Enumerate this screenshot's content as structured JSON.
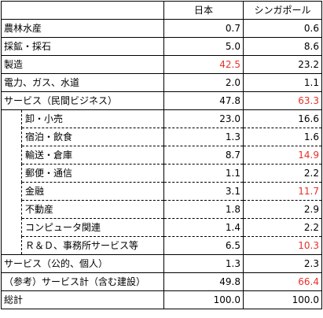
{
  "header": {
    "japan": "日本",
    "singapore": "シンガポール"
  },
  "colors": {
    "highlight": "#e8302a"
  },
  "rows": [
    {
      "label": "農林水産",
      "japan": "0.7",
      "singapore": "0.6"
    },
    {
      "label": "採鉱・採石",
      "japan": "5.0",
      "singapore": "8.6"
    },
    {
      "label": "製造",
      "japan": "42.5",
      "singapore": "23.2"
    },
    {
      "label": "電力、ガス、水道",
      "japan": "2.0",
      "singapore": "1.1"
    },
    {
      "label": "サービス（民間ビジネス）",
      "japan": "47.8",
      "singapore": "63.3"
    },
    {
      "label": "卸・小売",
      "japan": "23.0",
      "singapore": "16.6"
    },
    {
      "label": "宿泊・飲食",
      "japan": "1.3",
      "singapore": "1.6"
    },
    {
      "label": "輸送・倉庫",
      "japan": "8.7",
      "singapore": "14.9"
    },
    {
      "label": "郵便・通信",
      "japan": "1.1",
      "singapore": "2.2"
    },
    {
      "label": "金融",
      "japan": "3.1",
      "singapore": "11.7"
    },
    {
      "label": "不動産",
      "japan": "1.8",
      "singapore": "2.9"
    },
    {
      "label": "コンピュータ関連",
      "japan": "1.4",
      "singapore": "2.2"
    },
    {
      "label": "Ｒ＆Ｄ、事務所サービス等",
      "japan": "6.5",
      "singapore": "10.3"
    },
    {
      "label": "サービス（公的、個人）",
      "japan": "1.3",
      "singapore": "2.3"
    },
    {
      "label": "（参考）サービス計（含む建設）",
      "japan": "49.8",
      "singapore": "66.4"
    },
    {
      "label": "総計",
      "japan": "100.0",
      "singapore": "100.0"
    }
  ]
}
